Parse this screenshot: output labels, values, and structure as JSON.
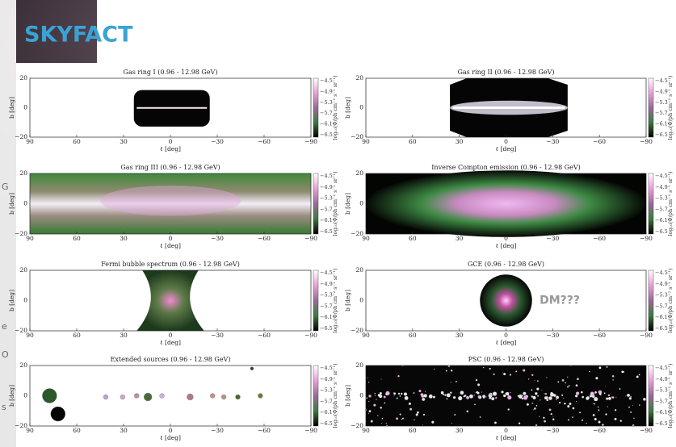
{
  "header": {
    "title": "SKYFACT"
  },
  "axes": {
    "x_ticks": [
      "90",
      "60",
      "30",
      "0",
      "−30",
      "−60",
      "−90"
    ],
    "y_ticks": [
      "20",
      "0",
      "−20"
    ],
    "x_label": "ℓ [deg]",
    "y_label": "b [deg]",
    "colorbar_ticks": [
      "−4.5",
      "−4.9",
      "−5.3",
      "−5.7",
      "−6.1",
      "−6.5"
    ],
    "colorbar_label": "log₁₀(Φ/ph cm⁻² s⁻¹ sr⁻¹)"
  },
  "panels": [
    {
      "title": "Gas ring I (0.96 - 12.98 GeV)"
    },
    {
      "title": "Gas ring II (0.96 - 12.98 GeV)"
    },
    {
      "title": "Gas ring III (0.96 - 12.98 GeV)"
    },
    {
      "title": "Inverse Compton emission (0.96 - 12.98 GeV)"
    },
    {
      "title": "Fermi bubble spectrum (0.96 - 12.98 GeV)"
    },
    {
      "title": "GCE (0.96 - 12.98 GeV)",
      "annotation": "DM???"
    },
    {
      "title": "Extended sources (0.96 - 12.98 GeV)"
    },
    {
      "title": "PSC (0.96 - 12.98 GeV)"
    }
  ],
  "side_fragments": [
    "G",
    "e",
    "O",
    "s"
  ]
}
